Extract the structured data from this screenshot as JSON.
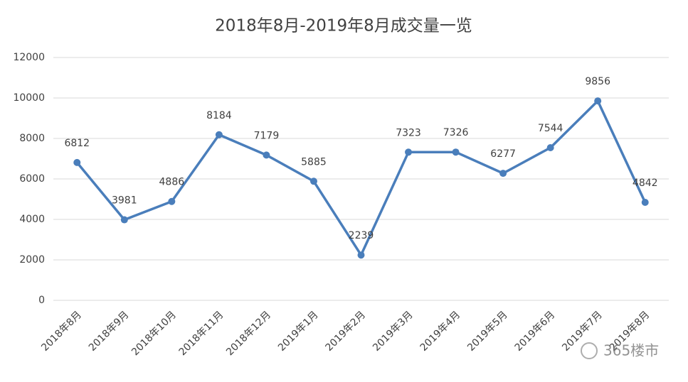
{
  "chart_data": {
    "type": "line",
    "title": "2018年8月-2019年8月成交量一览",
    "categories": [
      "2018年8月",
      "2018年9月",
      "2018年10月",
      "2018年11月",
      "2018年12月",
      "2019年1月",
      "2019年2月",
      "2019年3月",
      "2019年4月",
      "2019年5月",
      "2019年6月",
      "2019年7月",
      "2019年8月"
    ],
    "values": [
      6812,
      3981,
      4886,
      8184,
      7179,
      5885,
      2239,
      7323,
      7326,
      6277,
      7544,
      9856,
      4842
    ],
    "color": "#4a7ebb",
    "ylim": [
      0,
      12000
    ],
    "yticks": [
      0,
      2000,
      4000,
      6000,
      8000,
      10000,
      12000
    ],
    "grid": true
  },
  "watermark": "365楼市"
}
